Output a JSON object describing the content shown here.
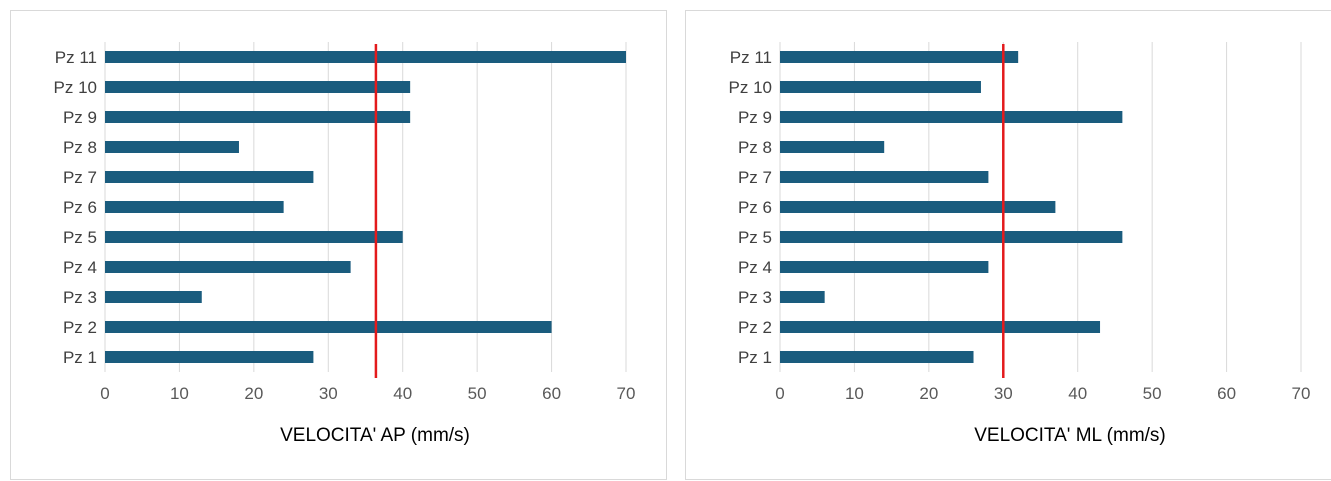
{
  "chart_data": [
    {
      "type": "bar",
      "orientation": "horizontal",
      "categories": [
        "Pz 1",
        "Pz 2",
        "Pz 3",
        "Pz 4",
        "Pz 5",
        "Pz 6",
        "Pz 7",
        "Pz 8",
        "Pz 9",
        "Pz 10",
        "Pz 11"
      ],
      "values": [
        28,
        60,
        13,
        33,
        40,
        24,
        28,
        18,
        41,
        41,
        70
      ],
      "reference_line": 36.4,
      "xlabel": "VELOCITA' AP (mm/s)",
      "ylabel": "",
      "xlim": [
        0,
        70
      ],
      "xticks": [
        "0",
        "10",
        "20",
        "30",
        "40",
        "50",
        "60",
        "70"
      ],
      "grid": true,
      "bar_color": "#1a5c7e",
      "reference_color": "#e31a1c"
    },
    {
      "type": "bar",
      "orientation": "horizontal",
      "categories": [
        "Pz 1",
        "Pz 2",
        "Pz 3",
        "Pz 4",
        "Pz 5",
        "Pz 6",
        "Pz 7",
        "Pz 8",
        "Pz 9",
        "Pz 10",
        "Pz 11"
      ],
      "values": [
        26,
        43,
        6,
        28,
        46,
        37,
        28,
        14,
        46,
        27,
        32
      ],
      "reference_line": 30,
      "xlabel": "VELOCITA' ML (mm/s)",
      "ylabel": "",
      "xlim": [
        0,
        70
      ],
      "xticks": [
        "0",
        "10",
        "20",
        "30",
        "40",
        "50",
        "60",
        "70"
      ],
      "grid": true,
      "bar_color": "#1a5c7e",
      "reference_color": "#e31a1c"
    }
  ]
}
